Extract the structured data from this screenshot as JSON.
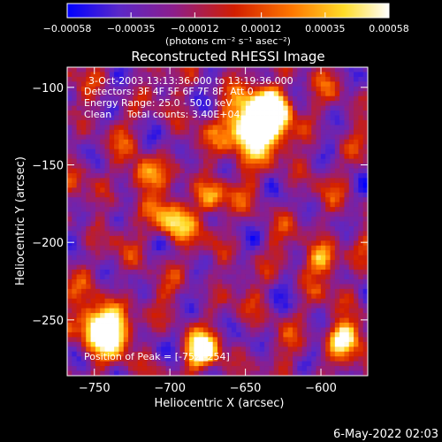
{
  "chart_data": {
    "type": "heatmap",
    "title": "Reconstructed RHESSI Image",
    "xlabel": "Heliocentric X (arcsec)",
    "ylabel": "Heliocentric Y (arcsec)",
    "xlim": [
      -768,
      -569
    ],
    "ylim": [
      -286,
      -87
    ],
    "x_ticks": [
      -750,
      -700,
      -650,
      -600
    ],
    "y_ticks": [
      -100,
      -150,
      -200,
      -250
    ],
    "x_tick_labels": [
      "−750",
      "−700",
      "−650",
      "−600"
    ],
    "y_tick_labels": [
      "−100",
      "−150",
      "−200",
      "−250"
    ],
    "colorbar": {
      "range": [
        -0.00058,
        0.00058
      ],
      "ticks": [
        -0.00058,
        -0.00035,
        -0.00012,
        0.00012,
        0.00035,
        0.00058
      ],
      "tick_labels": [
        "−0.00058",
        "−0.00035",
        "−0.00012",
        "0.00012",
        "0.00035",
        "0.00058"
      ],
      "unit_label": "(photons cm⁻² s⁻¹ asec⁻²)",
      "colors": [
        "#0000ff",
        "#5a28c8",
        "#8c1e8c",
        "#d21e00",
        "#ff7800",
        "#ffdc28",
        "#ffffff"
      ]
    },
    "annotations": [
      "3-Oct-2003 13:13:36.000 to 13:19:36.000",
      "Detectors: 3F 4F 5F 6F 7F 8F, Att 0",
      "Energy Range: 25.0 - 50.0 keV",
      "Clean     Total counts: 3.40E+04"
    ],
    "peak_text": "Position of Peak = [-752,-254]",
    "peak_position": [
      -752,
      -254
    ],
    "grid": false
  },
  "footer": {
    "date": "6-May-2022 02:03"
  }
}
